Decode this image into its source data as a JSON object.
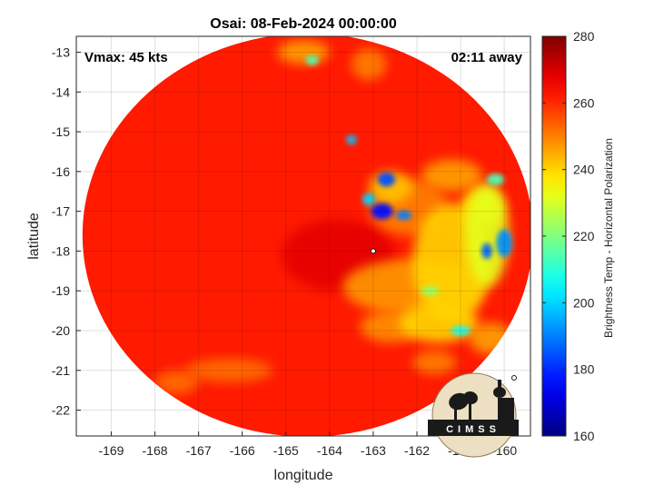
{
  "chart_data": {
    "type": "heatmap",
    "title": "Osai: 08-Feb-2024 00:00:00",
    "xlabel": "longitude",
    "ylabel": "latitude",
    "xlim": [
      -169.8,
      -159.4
    ],
    "ylim": [
      -22.65,
      -12.6
    ],
    "xticks": [
      -169,
      -168,
      -167,
      -166,
      -165,
      -164,
      -163,
      -162,
      -161,
      -160
    ],
    "yticks": [
      -13,
      -14,
      -15,
      -16,
      -17,
      -18,
      -19,
      -20,
      -21,
      -22
    ],
    "grid": true,
    "annotations": {
      "vmax": "Vmax: 45 kts",
      "time_away": "02:11 away"
    },
    "colorbar": {
      "label": "Brightness Temp - Horizontal Polarization",
      "min": 160,
      "max": 280,
      "ticks": [
        280,
        260,
        240,
        220,
        200,
        180,
        160
      ],
      "colormap": "jet"
    },
    "swath": {
      "center_lon": -164.5,
      "center_lat": -17.6,
      "background_temp": 262
    },
    "features": [
      {
        "lon": -163.8,
        "lat": -18.1,
        "rx": 1.3,
        "ry": 0.9,
        "temp": 268
      },
      {
        "lon": -162.2,
        "lat": -16.9,
        "rx": 0.9,
        "ry": 0.7,
        "temp": 250
      },
      {
        "lon": -162.6,
        "lat": -16.4,
        "rx": 0.5,
        "ry": 0.4,
        "temp": 242
      },
      {
        "lon": -162.1,
        "lat": -18.9,
        "rx": 1.6,
        "ry": 0.7,
        "temp": 247
      },
      {
        "lon": -161.2,
        "lat": -18.3,
        "rx": 0.9,
        "ry": 1.5,
        "temp": 240
      },
      {
        "lon": -160.4,
        "lat": -17.6,
        "rx": 0.5,
        "ry": 1.3,
        "temp": 232
      },
      {
        "lon": -161.5,
        "lat": -19.8,
        "rx": 0.9,
        "ry": 0.5,
        "temp": 240
      },
      {
        "lon": -162.6,
        "lat": -19.9,
        "rx": 0.7,
        "ry": 0.4,
        "temp": 248
      },
      {
        "lon": -161.2,
        "lat": -16.1,
        "rx": 0.7,
        "ry": 0.4,
        "temp": 246
      },
      {
        "lon": -160.5,
        "lat": -16.9,
        "rx": 0.5,
        "ry": 0.5,
        "temp": 238
      },
      {
        "lon": -164.6,
        "lat": -13.0,
        "rx": 0.6,
        "ry": 0.3,
        "temp": 246
      },
      {
        "lon": -163.1,
        "lat": -13.3,
        "rx": 0.4,
        "ry": 0.4,
        "temp": 250
      },
      {
        "lon": -166.3,
        "lat": -21.0,
        "rx": 1.0,
        "ry": 0.3,
        "temp": 252
      },
      {
        "lon": -167.5,
        "lat": -21.3,
        "rx": 0.5,
        "ry": 0.3,
        "temp": 252
      },
      {
        "lon": -160.3,
        "lat": -20.2,
        "rx": 0.5,
        "ry": 0.4,
        "temp": 246
      },
      {
        "lon": -161.6,
        "lat": -20.8,
        "rx": 0.5,
        "ry": 0.3,
        "temp": 250
      },
      {
        "lon": -162.8,
        "lat": -17.0,
        "rx": 0.25,
        "ry": 0.2,
        "temp": 176
      },
      {
        "lon": -162.7,
        "lat": -16.2,
        "rx": 0.2,
        "ry": 0.18,
        "temp": 184
      },
      {
        "lon": -162.3,
        "lat": -17.1,
        "rx": 0.18,
        "ry": 0.12,
        "temp": 190
      },
      {
        "lon": -163.1,
        "lat": -16.7,
        "rx": 0.15,
        "ry": 0.15,
        "temp": 200
      },
      {
        "lon": -160.0,
        "lat": -17.8,
        "rx": 0.18,
        "ry": 0.35,
        "temp": 192
      },
      {
        "lon": -160.4,
        "lat": -18.0,
        "rx": 0.12,
        "ry": 0.2,
        "temp": 186
      },
      {
        "lon": -161.0,
        "lat": -20.0,
        "rx": 0.22,
        "ry": 0.12,
        "temp": 206
      },
      {
        "lon": -163.5,
        "lat": -15.2,
        "rx": 0.12,
        "ry": 0.12,
        "temp": 198
      },
      {
        "lon": -164.4,
        "lat": -13.2,
        "rx": 0.15,
        "ry": 0.12,
        "temp": 214
      },
      {
        "lon": -160.2,
        "lat": -16.2,
        "rx": 0.2,
        "ry": 0.15,
        "temp": 214
      },
      {
        "lon": -161.7,
        "lat": -19.0,
        "rx": 0.2,
        "ry": 0.12,
        "temp": 222
      }
    ]
  },
  "logo": {
    "text": "CIMSS"
  }
}
